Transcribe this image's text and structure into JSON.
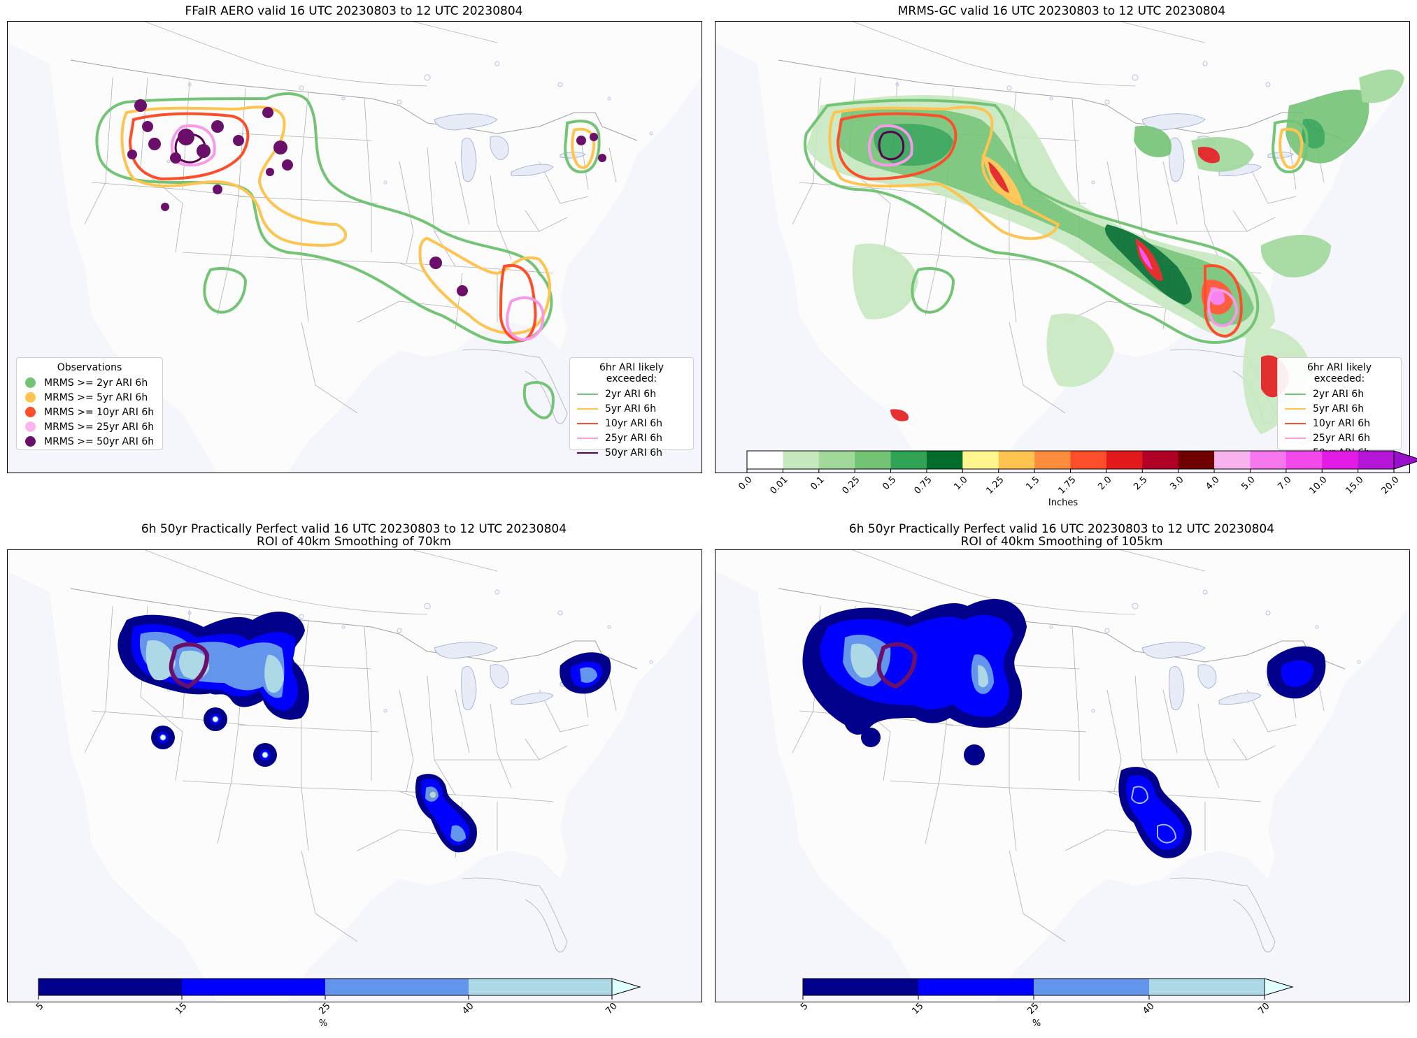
{
  "panels": {
    "top_left": {
      "title": "FFaIR AERO valid 16 UTC 20230803 to 12 UTC 20230804",
      "obs_legend": {
        "title": "Observations",
        "items": [
          {
            "label": "MRMS >= 2yr ARI 6h",
            "color": "#74c476"
          },
          {
            "label": "MRMS >= 5yr ARI 6h",
            "color": "#fec44f"
          },
          {
            "label": "MRMS >= 10yr ARI 6h",
            "color": "#fc4e2a"
          },
          {
            "label": "MRMS >= 25yr ARI 6h",
            "color": "#fbb4f0"
          },
          {
            "label": "MRMS >= 50yr ARI 6h",
            "color": "#6a0f6a"
          }
        ]
      },
      "ari_legend": {
        "title": "6hr ARI likely exceeded:",
        "items": [
          {
            "label": "2yr ARI 6h",
            "color": "#74c476"
          },
          {
            "label": "5yr ARI 6h",
            "color": "#fec44f"
          },
          {
            "label": "10yr ARI 6h",
            "color": "#fc4e2a"
          },
          {
            "label": "25yr ARI 6h",
            "color": "#f79ae8"
          },
          {
            "label": "50yr ARI 6h",
            "color": "#5a0050"
          }
        ]
      }
    },
    "top_right": {
      "title": "MRMS-GC valid 16 UTC 20230803 to 12 UTC 20230804",
      "ari_legend": {
        "title": "6hr ARI likely exceeded:",
        "items": [
          {
            "label": "2yr ARI 6h",
            "color": "#74c476"
          },
          {
            "label": "5yr ARI 6h",
            "color": "#fec44f"
          },
          {
            "label": "10yr ARI 6h",
            "color": "#fc4e2a"
          },
          {
            "label": "25yr ARI 6h",
            "color": "#f79ae8"
          },
          {
            "label": "50yr ARI 6h",
            "color": "#5a0050"
          }
        ]
      },
      "colorbar": {
        "label": "Inches",
        "ticks": [
          "0.0",
          "0.01",
          "0.1",
          "0.25",
          "0.5",
          "0.75",
          "1.0",
          "1.25",
          "1.5",
          "1.75",
          "2.0",
          "2.5",
          "3.0",
          "4.0",
          "5.0",
          "7.0",
          "10.0",
          "15.0",
          "20.0"
        ],
        "colors": [
          "#ffffff",
          "#c7e9c0",
          "#a1d99b",
          "#74c476",
          "#31a354",
          "#006d2c",
          "#fff68f",
          "#fec44f",
          "#fd8d3c",
          "#fc4e2a",
          "#e31a1c",
          "#b10026",
          "#6e0000",
          "#f9b4f0",
          "#f777ee",
          "#f349ea",
          "#e21be6",
          "#b616d8"
        ],
        "extend_color": "#9a0fcc"
      }
    },
    "bottom_left": {
      "title_line1": "6h 50yr Practically Perfect valid 16 UTC 20230803 to 12 UTC 20230804",
      "title_line2": "ROI of 40km Smoothing of 70km",
      "colorbar": {
        "label": "%",
        "ticks": [
          "5",
          "15",
          "25",
          "40",
          "70"
        ],
        "colors": [
          "#00008b",
          "#0000ff",
          "#6495ed",
          "#add8e6"
        ],
        "extend_color": "#e0ffff"
      }
    },
    "bottom_right": {
      "title_line1": "6h 50yr Practically Perfect valid 16 UTC 20230803 to 12 UTC 20230804",
      "title_line2": "ROI of 40km Smoothing of 105km",
      "colorbar": {
        "label": "%",
        "ticks": [
          "5",
          "15",
          "25",
          "40",
          "70"
        ],
        "colors": [
          "#00008b",
          "#0000ff",
          "#6495ed",
          "#add8e6"
        ],
        "extend_color": "#e0ffff"
      }
    }
  }
}
